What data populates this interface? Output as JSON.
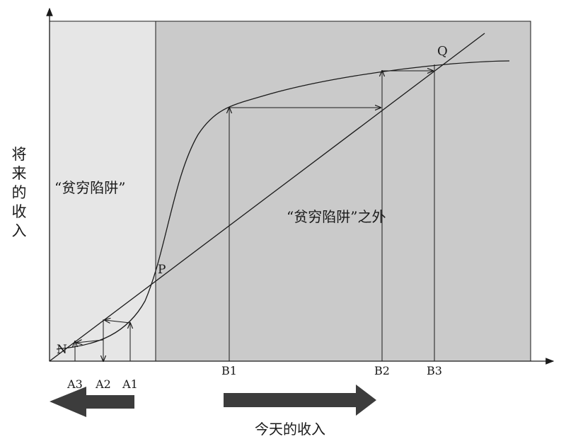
{
  "axes": {
    "y_label": "将来的收入",
    "x_label": "今天的收入"
  },
  "regions": {
    "trap": "“贫穷陷阱”",
    "outside": "“贫穷陷阱”之外"
  },
  "points": {
    "n": "N",
    "p": "P",
    "q": "Q"
  },
  "ticks": {
    "a3": "A3",
    "a2": "A2",
    "a1": "A1",
    "b1": "B1",
    "b2": "B2",
    "b3": "B3"
  },
  "colors": {
    "trap_fill": "#e6e6e6",
    "outside_fill": "#cacaca",
    "arrow_fill": "#3c3c3c",
    "line": "#1a1a1a"
  }
}
